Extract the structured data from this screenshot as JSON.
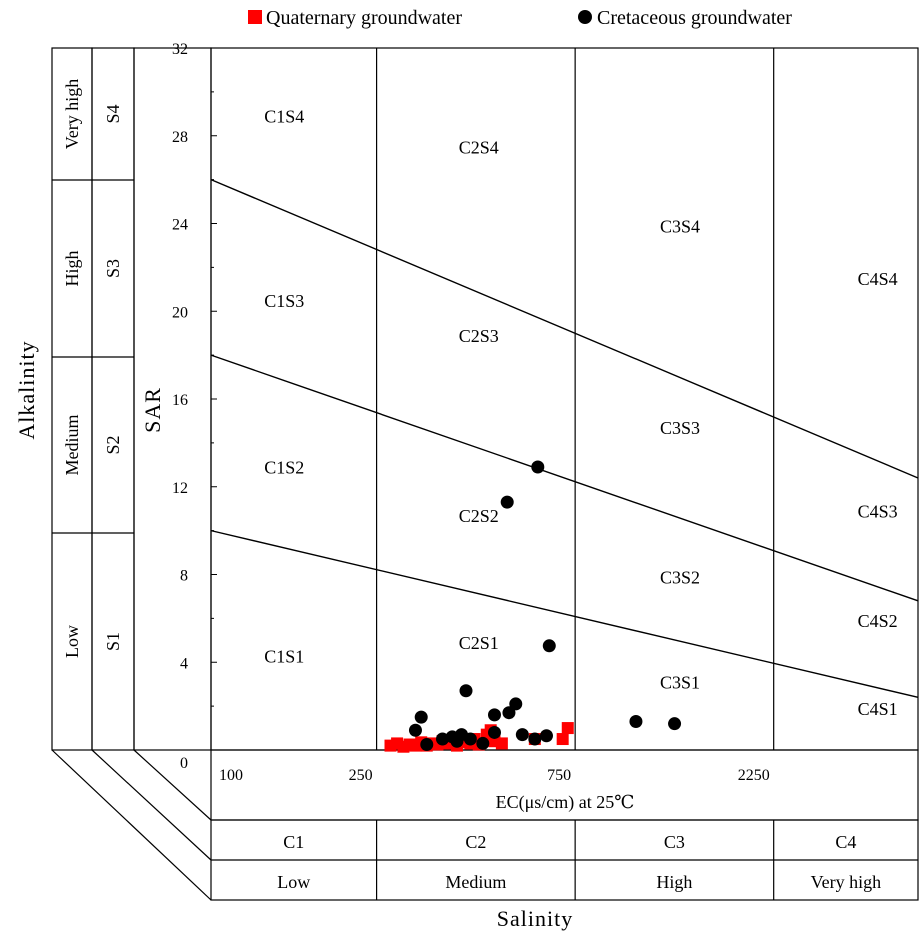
{
  "chart_data": {
    "type": "scatter",
    "title": "",
    "xlabel": "EC(μs/cm) at 25℃",
    "ylabel": "SAR",
    "outer_xlabel": "Salinity",
    "outer_ylabel": "Alkalinity",
    "x_scale": "log",
    "xlim": [
      100,
      5000
    ],
    "ylim": [
      0,
      32
    ],
    "x_ticks": [
      {
        "value": 100,
        "label": "100"
      },
      {
        "value": 250,
        "label": "250"
      },
      {
        "value": 750,
        "label": "750"
      },
      {
        "value": 2250,
        "label": "2250"
      }
    ],
    "y_ticks": [
      {
        "value": 0,
        "label": "0"
      },
      {
        "value": 4,
        "label": "4"
      },
      {
        "value": 8,
        "label": "8"
      },
      {
        "value": 12,
        "label": "12"
      },
      {
        "value": 16,
        "label": "16"
      },
      {
        "value": 20,
        "label": "20"
      },
      {
        "value": 24,
        "label": "24"
      },
      {
        "value": 28,
        "label": "28"
      },
      {
        "value": 32,
        "label": "32"
      }
    ],
    "grid": false,
    "legend_position": "top",
    "salinity_classes": [
      {
        "code": "C1",
        "name": "Low",
        "from": 100,
        "to": 250
      },
      {
        "code": "C2",
        "name": "Medium",
        "from": 250,
        "to": 750
      },
      {
        "code": "C3",
        "name": "High",
        "from": 750,
        "to": 2250
      },
      {
        "code": "C4",
        "name": "Very high",
        "from": 2250,
        "to": 5000
      }
    ],
    "alkalinity_classes": [
      {
        "code": "S1",
        "name": "Low"
      },
      {
        "code": "S2",
        "name": "Medium"
      },
      {
        "code": "S3",
        "name": "High"
      },
      {
        "code": "S4",
        "name": "Very high"
      }
    ],
    "boundary_lines": [
      {
        "name": "S1/S2",
        "points": [
          [
            100,
            10.0
          ],
          [
            5000,
            2.4
          ]
        ]
      },
      {
        "name": "S2/S3",
        "points": [
          [
            100,
            18.0
          ],
          [
            5000,
            6.8
          ]
        ]
      },
      {
        "name": "S3/S4",
        "points": [
          [
            100,
            26.0
          ],
          [
            5000,
            12.4
          ]
        ]
      }
    ],
    "zones": [
      {
        "label": "C1S4",
        "x": 150,
        "y": 28.6
      },
      {
        "label": "C2S4",
        "x": 440,
        "y": 27.2
      },
      {
        "label": "C3S4",
        "x": 1340,
        "y": 23.6
      },
      {
        "label": "C4S4",
        "x": 4000,
        "y": 21.2
      },
      {
        "label": "C1S3",
        "x": 150,
        "y": 20.2
      },
      {
        "label": "C2S3",
        "x": 440,
        "y": 18.6
      },
      {
        "label": "C3S3",
        "x": 1340,
        "y": 14.4
      },
      {
        "label": "C4S3",
        "x": 4000,
        "y": 10.6
      },
      {
        "label": "C1S2",
        "x": 150,
        "y": 12.6
      },
      {
        "label": "C2S2",
        "x": 440,
        "y": 10.4
      },
      {
        "label": "C3S2",
        "x": 1340,
        "y": 7.6
      },
      {
        "label": "C4S2",
        "x": 4000,
        "y": 5.6
      },
      {
        "label": "C1S1",
        "x": 150,
        "y": 4.0
      },
      {
        "label": "C2S1",
        "x": 440,
        "y": 4.6
      },
      {
        "label": "C3S1",
        "x": 1340,
        "y": 2.8
      },
      {
        "label": "C4S1",
        "x": 4000,
        "y": 1.6
      }
    ],
    "series": [
      {
        "name": "Quaternary groundwater",
        "marker": "square",
        "color": "#ff0000",
        "points": [
          [
            270,
            0.2
          ],
          [
            280,
            0.3
          ],
          [
            290,
            0.15
          ],
          [
            300,
            0.25
          ],
          [
            310,
            0.2
          ],
          [
            320,
            0.35
          ],
          [
            330,
            0.2
          ],
          [
            340,
            0.3
          ],
          [
            350,
            0.25
          ],
          [
            360,
            0.4
          ],
          [
            370,
            0.3
          ],
          [
            380,
            0.45
          ],
          [
            390,
            0.2
          ],
          [
            400,
            0.35
          ],
          [
            420,
            0.3
          ],
          [
            430,
            0.5
          ],
          [
            440,
            0.25
          ],
          [
            460,
            0.7
          ],
          [
            470,
            0.9
          ],
          [
            480,
            0.4
          ],
          [
            500,
            0.3
          ],
          [
            600,
            0.5
          ],
          [
            700,
            0.5
          ],
          [
            720,
            1.0
          ]
        ]
      },
      {
        "name": "Cretaceous groundwater",
        "marker": "circle",
        "color": "#000000",
        "points": [
          [
            610,
            12.9
          ],
          [
            515,
            11.3
          ],
          [
            650,
            4.75
          ],
          [
            410,
            2.7
          ],
          [
            540,
            2.1
          ],
          [
            480,
            1.6
          ],
          [
            520,
            1.7
          ],
          [
            320,
            1.5
          ],
          [
            1050,
            1.3
          ],
          [
            1300,
            1.2
          ],
          [
            310,
            0.9
          ],
          [
            360,
            0.5
          ],
          [
            380,
            0.6
          ],
          [
            390,
            0.4
          ],
          [
            400,
            0.7
          ],
          [
            420,
            0.5
          ],
          [
            450,
            0.3
          ],
          [
            480,
            0.8
          ],
          [
            560,
            0.7
          ],
          [
            600,
            0.5
          ],
          [
            330,
            0.25
          ],
          [
            640,
            0.65
          ]
        ]
      }
    ]
  }
}
